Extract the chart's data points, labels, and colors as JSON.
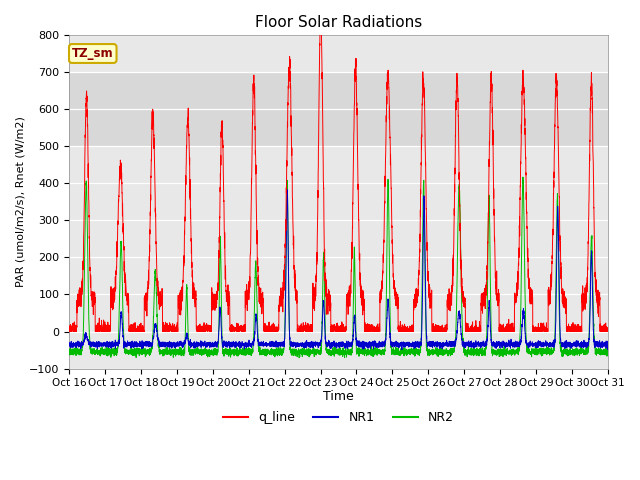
{
  "title": "Floor Solar Radiations",
  "xlabel": "Time",
  "ylabel": "PAR (umol/m2/s), Rnet (W/m2)",
  "ylim": [
    -100,
    800
  ],
  "xlim": [
    0,
    360
  ],
  "xtick_positions": [
    0,
    24,
    48,
    72,
    96,
    120,
    144,
    168,
    192,
    216,
    240,
    264,
    288,
    312,
    336,
    360
  ],
  "xtick_labels": [
    "Oct 16",
    "Oct 17",
    "Oct 18",
    "Oct 19",
    "Oct 20",
    "Oct 21",
    "Oct 22",
    "Oct 23",
    "Oct 24",
    "Oct 25",
    "Oct 26",
    "Oct 27",
    "Oct 28",
    "Oct 29",
    "Oct 30",
    "Oct 31"
  ],
  "ytick_positions": [
    -100,
    0,
    100,
    200,
    300,
    400,
    500,
    600,
    700,
    800
  ],
  "legend_labels": [
    "q_line",
    "NR1",
    "NR2"
  ],
  "legend_colors": [
    "#ff0000",
    "#0000cc",
    "#00bb00"
  ],
  "line_colors": {
    "q_line": "#ff0000",
    "NR1": "#0000cc",
    "NR2": "#00bb00"
  },
  "annotation_text": "TZ_sm",
  "background_color": "#e8e8e8",
  "band_color": "#d8d8d8",
  "band_y1": 500,
  "band_y2": 700,
  "grid_color": "#ffffff",
  "fig_background": "#ffffff",
  "q_peaks": [
    555,
    370,
    500,
    490,
    480,
    600,
    640,
    780,
    625,
    605,
    605,
    600,
    600,
    600,
    595,
    600
  ],
  "nr1_peaks": [
    25,
    85,
    55,
    30,
    100,
    80,
    420,
    120,
    75,
    120,
    400,
    90,
    110,
    95,
    370,
    250
  ],
  "nr2_peaks": [
    460,
    295,
    220,
    175,
    310,
    235,
    465,
    265,
    280,
    460,
    460,
    450,
    420,
    465,
    420,
    310
  ],
  "q_night_base": 85,
  "nr1_night_base": -35,
  "nr2_night_base": -55
}
